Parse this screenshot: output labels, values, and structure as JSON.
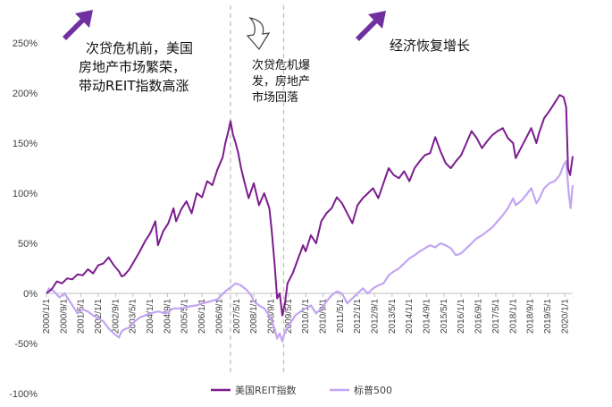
{
  "chart_data": {
    "type": "line",
    "title": "",
    "xlabel": "",
    "ylabel": "",
    "ylim": [
      -100,
      250
    ],
    "y_ticks": [
      "250%",
      "200%",
      "150%",
      "100%",
      "50%",
      "0%",
      "-50%",
      "-100%"
    ],
    "x_ticks": [
      "2000/1/1",
      "2000/9/1",
      "2001/5/1",
      "2002/1/1",
      "2002/9/1",
      "2003/5/1",
      "2004/1/1",
      "2004/9/1",
      "2005/5/1",
      "2006/1/1",
      "2006/9/1",
      "2007/5/1",
      "2008/1/1",
      "2008/9/1",
      "2009/5/1",
      "2010/1/1",
      "2010/9/1",
      "2011/5/1",
      "2012/1/1",
      "2012/9/1",
      "2013/5/1",
      "2014/1/1",
      "2014/9/1",
      "2015/5/1",
      "2016/1/1",
      "2016/9/1",
      "2017/5/1",
      "2018/1/1",
      "2018/9/1",
      "2019/5/1",
      "2020/1/1"
    ],
    "x_range": [
      2000.0,
      2020.3
    ],
    "grid": false,
    "legend_position": "bottom",
    "colors": {
      "reit": "#7B1C8E",
      "sp500": "#C3A5F2",
      "arrow": "#7030A0",
      "divider": "#BFBFBF"
    },
    "series": [
      {
        "name": "美国REIT指数",
        "color": "#7B1C8E",
        "points": [
          [
            2000.0,
            0
          ],
          [
            2000.2,
            4
          ],
          [
            2000.4,
            12
          ],
          [
            2000.6,
            10
          ],
          [
            2000.8,
            15
          ],
          [
            2001.0,
            14
          ],
          [
            2001.2,
            19
          ],
          [
            2001.4,
            18
          ],
          [
            2001.6,
            24
          ],
          [
            2001.8,
            20
          ],
          [
            2002.0,
            28
          ],
          [
            2002.2,
            30
          ],
          [
            2002.4,
            36
          ],
          [
            2002.6,
            28
          ],
          [
            2002.8,
            22
          ],
          [
            2002.9,
            17
          ],
          [
            2003.0,
            18
          ],
          [
            2003.2,
            24
          ],
          [
            2003.4,
            33
          ],
          [
            2003.6,
            42
          ],
          [
            2003.8,
            52
          ],
          [
            2004.0,
            60
          ],
          [
            2004.2,
            72
          ],
          [
            2004.3,
            48
          ],
          [
            2004.5,
            62
          ],
          [
            2004.7,
            70
          ],
          [
            2004.9,
            85
          ],
          [
            2005.0,
            72
          ],
          [
            2005.2,
            84
          ],
          [
            2005.4,
            92
          ],
          [
            2005.6,
            80
          ],
          [
            2005.8,
            100
          ],
          [
            2006.0,
            96
          ],
          [
            2006.2,
            112
          ],
          [
            2006.4,
            108
          ],
          [
            2006.6,
            124
          ],
          [
            2006.8,
            136
          ],
          [
            2006.9,
            150
          ],
          [
            2007.0,
            160
          ],
          [
            2007.1,
            172
          ],
          [
            2007.2,
            158
          ],
          [
            2007.3,
            150
          ],
          [
            2007.4,
            140
          ],
          [
            2007.5,
            126
          ],
          [
            2007.6,
            115
          ],
          [
            2007.8,
            95
          ],
          [
            2008.0,
            110
          ],
          [
            2008.2,
            88
          ],
          [
            2008.4,
            100
          ],
          [
            2008.6,
            85
          ],
          [
            2008.7,
            60
          ],
          [
            2008.8,
            30
          ],
          [
            2008.9,
            -5
          ],
          [
            2009.0,
            0
          ],
          [
            2009.1,
            -22
          ],
          [
            2009.2,
            -10
          ],
          [
            2009.3,
            10
          ],
          [
            2009.5,
            20
          ],
          [
            2009.7,
            34
          ],
          [
            2009.9,
            48
          ],
          [
            2010.0,
            42
          ],
          [
            2010.2,
            58
          ],
          [
            2010.4,
            50
          ],
          [
            2010.6,
            72
          ],
          [
            2010.8,
            80
          ],
          [
            2011.0,
            85
          ],
          [
            2011.2,
            96
          ],
          [
            2011.4,
            90
          ],
          [
            2011.6,
            80
          ],
          [
            2011.8,
            70
          ],
          [
            2012.0,
            88
          ],
          [
            2012.2,
            95
          ],
          [
            2012.4,
            100
          ],
          [
            2012.6,
            105
          ],
          [
            2012.8,
            95
          ],
          [
            2013.0,
            110
          ],
          [
            2013.2,
            125
          ],
          [
            2013.4,
            118
          ],
          [
            2013.6,
            115
          ],
          [
            2013.8,
            122
          ],
          [
            2014.0,
            112
          ],
          [
            2014.2,
            125
          ],
          [
            2014.4,
            132
          ],
          [
            2014.6,
            138
          ],
          [
            2014.8,
            140
          ],
          [
            2015.0,
            156
          ],
          [
            2015.2,
            142
          ],
          [
            2015.4,
            130
          ],
          [
            2015.6,
            125
          ],
          [
            2015.8,
            132
          ],
          [
            2016.0,
            138
          ],
          [
            2016.2,
            150
          ],
          [
            2016.4,
            162
          ],
          [
            2016.6,
            155
          ],
          [
            2016.8,
            145
          ],
          [
            2017.0,
            152
          ],
          [
            2017.2,
            158
          ],
          [
            2017.4,
            162
          ],
          [
            2017.6,
            165
          ],
          [
            2017.8,
            155
          ],
          [
            2018.0,
            150
          ],
          [
            2018.1,
            135
          ],
          [
            2018.3,
            145
          ],
          [
            2018.5,
            155
          ],
          [
            2018.7,
            165
          ],
          [
            2018.9,
            150
          ],
          [
            2019.0,
            160
          ],
          [
            2019.2,
            175
          ],
          [
            2019.4,
            182
          ],
          [
            2019.6,
            190
          ],
          [
            2019.8,
            198
          ],
          [
            2019.95,
            196
          ],
          [
            2020.05,
            186
          ],
          [
            2020.12,
            125
          ],
          [
            2020.2,
            118
          ],
          [
            2020.3,
            137
          ]
        ]
      },
      {
        "name": "标普500",
        "color": "#C3A5F2",
        "points": [
          [
            2000.0,
            0
          ],
          [
            2000.1,
            5
          ],
          [
            2000.3,
            2
          ],
          [
            2000.5,
            -4
          ],
          [
            2000.7,
            0
          ],
          [
            2000.9,
            -8
          ],
          [
            2001.0,
            -12
          ],
          [
            2001.2,
            -20
          ],
          [
            2001.4,
            -16
          ],
          [
            2001.6,
            -18
          ],
          [
            2001.8,
            -22
          ],
          [
            2002.0,
            -25
          ],
          [
            2002.2,
            -28
          ],
          [
            2002.4,
            -35
          ],
          [
            2002.6,
            -40
          ],
          [
            2002.8,
            -44
          ],
          [
            2002.9,
            -38
          ],
          [
            2003.0,
            -36
          ],
          [
            2003.2,
            -34
          ],
          [
            2003.4,
            -28
          ],
          [
            2003.6,
            -24
          ],
          [
            2003.8,
            -22
          ],
          [
            2004.0,
            -20
          ],
          [
            2004.3,
            -18
          ],
          [
            2004.6,
            -20
          ],
          [
            2004.9,
            -15
          ],
          [
            2005.2,
            -15
          ],
          [
            2005.5,
            -13
          ],
          [
            2005.8,
            -12
          ],
          [
            2006.0,
            -10
          ],
          [
            2006.3,
            -8
          ],
          [
            2006.6,
            -6
          ],
          [
            2006.9,
            2
          ],
          [
            2007.1,
            6
          ],
          [
            2007.3,
            10
          ],
          [
            2007.5,
            8
          ],
          [
            2007.7,
            4
          ],
          [
            2007.9,
            -2
          ],
          [
            2008.0,
            -8
          ],
          [
            2008.2,
            -12
          ],
          [
            2008.4,
            -15
          ],
          [
            2008.6,
            -22
          ],
          [
            2008.8,
            -35
          ],
          [
            2008.9,
            -45
          ],
          [
            2009.0,
            -40
          ],
          [
            2009.1,
            -48
          ],
          [
            2009.2,
            -38
          ],
          [
            2009.4,
            -30
          ],
          [
            2009.6,
            -22
          ],
          [
            2009.8,
            -18
          ],
          [
            2010.0,
            -15
          ],
          [
            2010.2,
            -12
          ],
          [
            2010.4,
            -20
          ],
          [
            2010.6,
            -15
          ],
          [
            2010.8,
            -8
          ],
          [
            2011.0,
            -2
          ],
          [
            2011.2,
            2
          ],
          [
            2011.4,
            0
          ],
          [
            2011.6,
            -10
          ],
          [
            2011.8,
            -5
          ],
          [
            2012.0,
            0
          ],
          [
            2012.2,
            5
          ],
          [
            2012.4,
            0
          ],
          [
            2012.6,
            5
          ],
          [
            2012.8,
            8
          ],
          [
            2013.0,
            10
          ],
          [
            2013.2,
            18
          ],
          [
            2013.4,
            22
          ],
          [
            2013.6,
            25
          ],
          [
            2013.8,
            30
          ],
          [
            2014.0,
            35
          ],
          [
            2014.2,
            38
          ],
          [
            2014.4,
            42
          ],
          [
            2014.6,
            45
          ],
          [
            2014.8,
            48
          ],
          [
            2015.0,
            46
          ],
          [
            2015.2,
            50
          ],
          [
            2015.4,
            48
          ],
          [
            2015.6,
            45
          ],
          [
            2015.8,
            38
          ],
          [
            2016.0,
            40
          ],
          [
            2016.2,
            45
          ],
          [
            2016.4,
            50
          ],
          [
            2016.6,
            55
          ],
          [
            2016.8,
            58
          ],
          [
            2017.0,
            62
          ],
          [
            2017.2,
            66
          ],
          [
            2017.4,
            72
          ],
          [
            2017.6,
            78
          ],
          [
            2017.8,
            85
          ],
          [
            2018.0,
            95
          ],
          [
            2018.1,
            88
          ],
          [
            2018.3,
            92
          ],
          [
            2018.5,
            98
          ],
          [
            2018.7,
            105
          ],
          [
            2018.9,
            90
          ],
          [
            2019.0,
            94
          ],
          [
            2019.2,
            105
          ],
          [
            2019.4,
            110
          ],
          [
            2019.6,
            112
          ],
          [
            2019.8,
            118
          ],
          [
            2019.95,
            128
          ],
          [
            2020.05,
            132
          ],
          [
            2020.15,
            100
          ],
          [
            2020.22,
            85
          ],
          [
            2020.3,
            108
          ]
        ]
      }
    ],
    "dividers": [
      2007.1,
      2009.15
    ],
    "annotations": [
      {
        "id": "pre-crisis",
        "lines": [
          "次贷危机前，美国",
          "房地产市场繁荣，",
          "带动REIT指数高涨"
        ]
      },
      {
        "id": "crisis",
        "lines": [
          "次贷危机爆",
          "发，房地产",
          "市场回落"
        ]
      },
      {
        "id": "recovery",
        "lines": [
          "经济恢复增长"
        ]
      }
    ],
    "icons": [
      "arrow-up-right-icon",
      "arrow-down-outline-icon",
      "arrow-up-right-icon"
    ]
  }
}
